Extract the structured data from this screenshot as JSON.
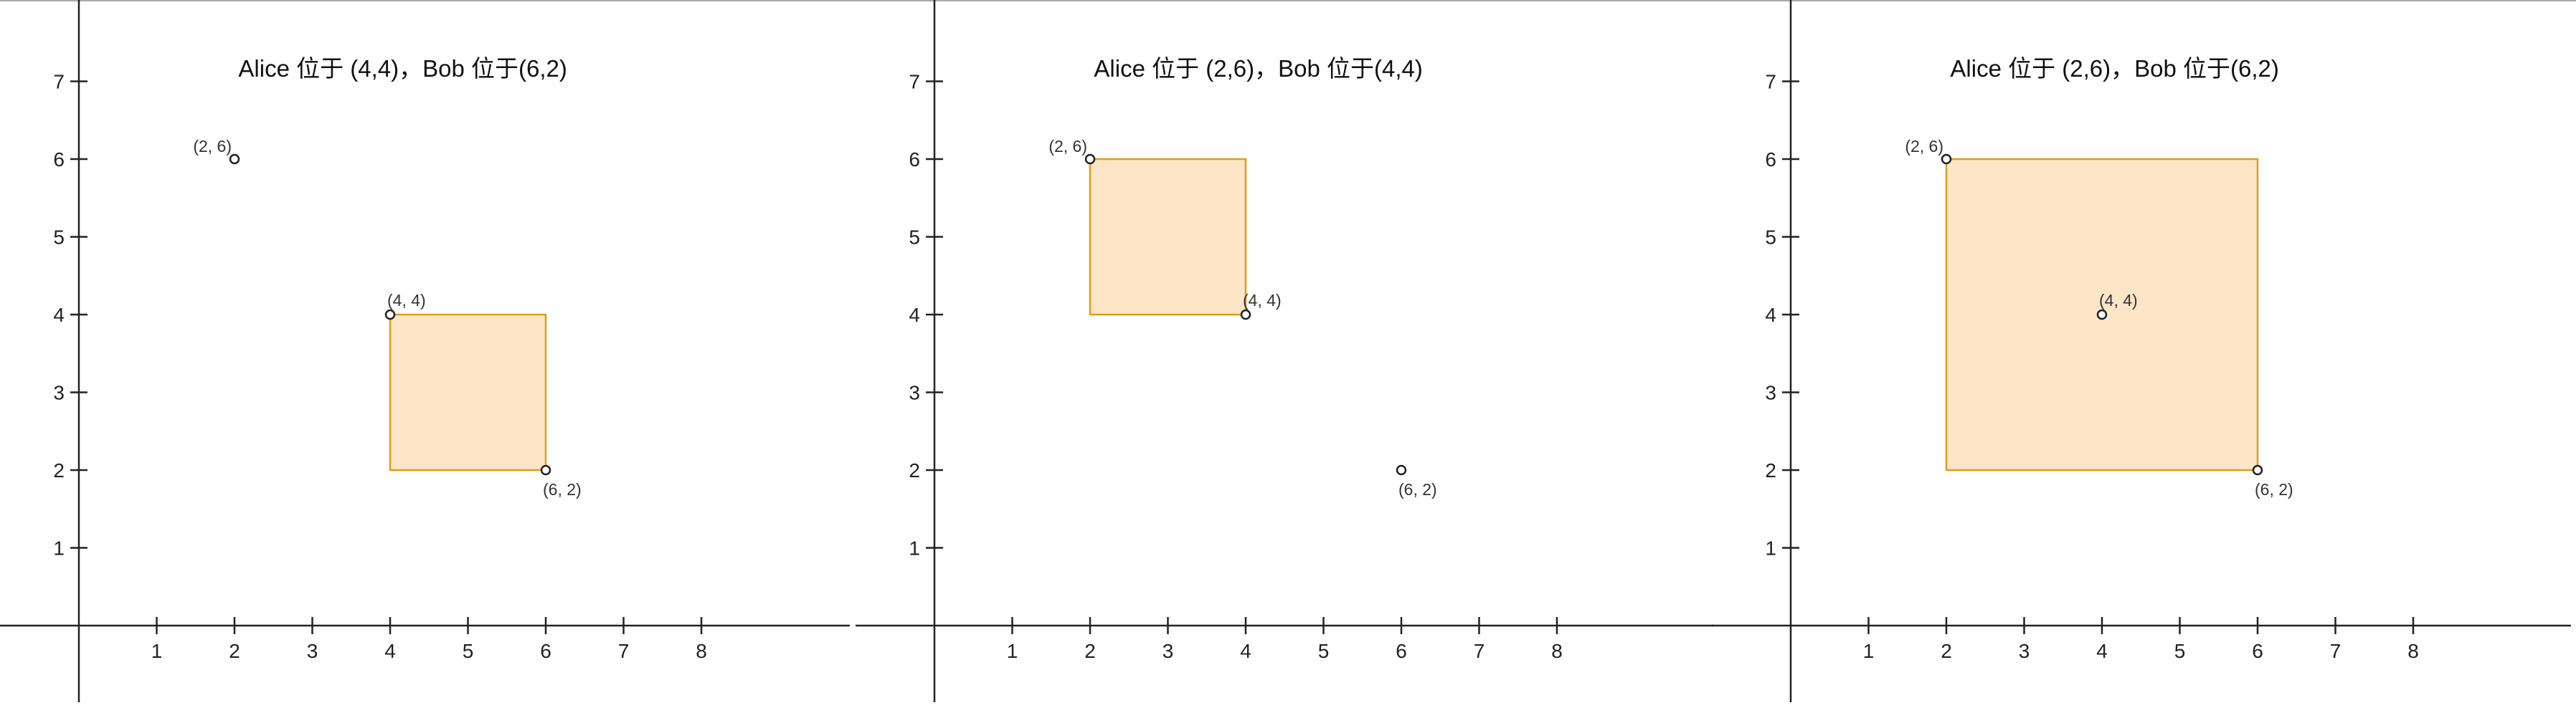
{
  "colors": {
    "axis": "#222222",
    "rect_fill": "#fde5c8",
    "rect_stroke": "#d8a018",
    "point_stroke": "#222222",
    "top_border": "#aaaaaa"
  },
  "panels": [
    {
      "title": "Alice 位于 (4,4)，Bob 位于(6,2)",
      "x_ticks": [
        "1",
        "2",
        "3",
        "4",
        "5",
        "6",
        "7",
        "8"
      ],
      "y_ticks": [
        "1",
        "2",
        "3",
        "4",
        "5",
        "6",
        "7"
      ],
      "points": [
        {
          "x": 2,
          "y": 6,
          "label": "(2, 6)"
        },
        {
          "x": 4,
          "y": 4,
          "label": "(4, 4)"
        },
        {
          "x": 6,
          "y": 2,
          "label": "(6, 2)"
        }
      ],
      "rect": {
        "x1": 4,
        "y1": 2,
        "x2": 6,
        "y2": 4
      }
    },
    {
      "title": "Alice 位于 (2,6)，Bob 位于(4,4)",
      "x_ticks": [
        "1",
        "2",
        "3",
        "4",
        "5",
        "6",
        "7",
        "8"
      ],
      "y_ticks": [
        "1",
        "2",
        "3",
        "4",
        "5",
        "6",
        "7"
      ],
      "points": [
        {
          "x": 2,
          "y": 6,
          "label": "(2, 6)"
        },
        {
          "x": 4,
          "y": 4,
          "label": "(4, 4)"
        },
        {
          "x": 6,
          "y": 2,
          "label": "(6, 2)"
        }
      ],
      "rect": {
        "x1": 2,
        "y1": 4,
        "x2": 4,
        "y2": 6
      }
    },
    {
      "title": "Alice 位于 (2,6)，Bob 位于(6,2)",
      "x_ticks": [
        "1",
        "2",
        "3",
        "4",
        "5",
        "6",
        "7",
        "8"
      ],
      "y_ticks": [
        "1",
        "2",
        "3",
        "4",
        "5",
        "6",
        "7"
      ],
      "points": [
        {
          "x": 2,
          "y": 6,
          "label": "(2, 6)"
        },
        {
          "x": 4,
          "y": 4,
          "label": "(4, 4)"
        },
        {
          "x": 6,
          "y": 2,
          "label": "(6, 2)"
        }
      ],
      "rect": {
        "x1": 2,
        "y1": 2,
        "x2": 6,
        "y2": 6
      }
    }
  ]
}
